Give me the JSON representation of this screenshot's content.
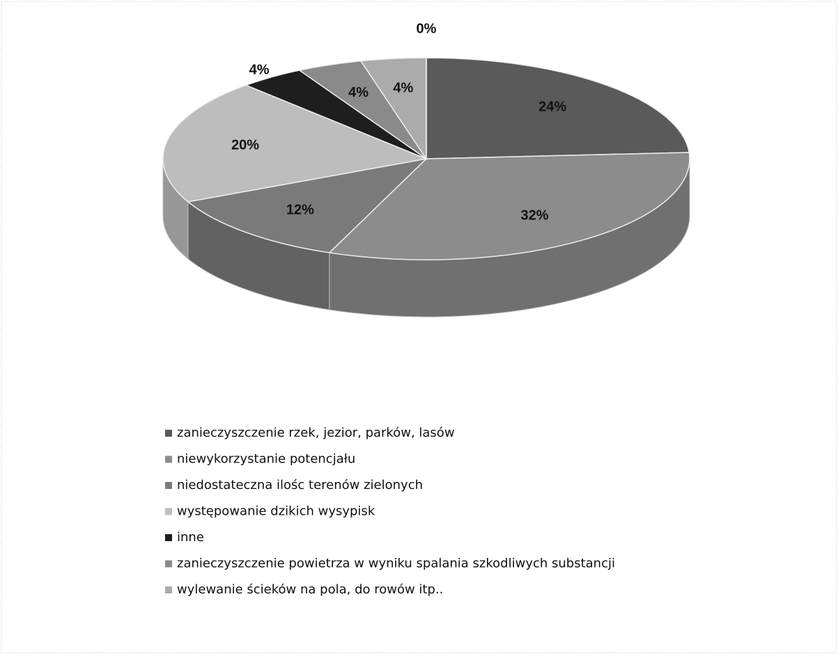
{
  "chart_data": {
    "type": "pie",
    "categories": [
      "zanieczyszczenie rzek, jezior, parków, lasów",
      "niewykorzystanie potencjału",
      "niedostateczna ilośc terenów zielonych",
      "występowanie dzikich wysypisk",
      "inne",
      "zanieczyszczenie powietrza  w wyniku spalania szkodliwych substancji",
      "wylewanie ścieków na pola, do rowów itp..",
      null
    ],
    "values": [
      24,
      32,
      12,
      20,
      4,
      4,
      4,
      0
    ],
    "value_labels": [
      "24%",
      "32%",
      "12%",
      "20%",
      "4%",
      "4%",
      "4%",
      "0%"
    ],
    "colors": [
      "#5a5a5a",
      "#8c8c8c",
      "#7a7a7a",
      "#bdbdbd",
      "#1e1e1e",
      "#8a8a8a",
      "#ababab",
      "#999999"
    ],
    "legend": "bottom"
  }
}
